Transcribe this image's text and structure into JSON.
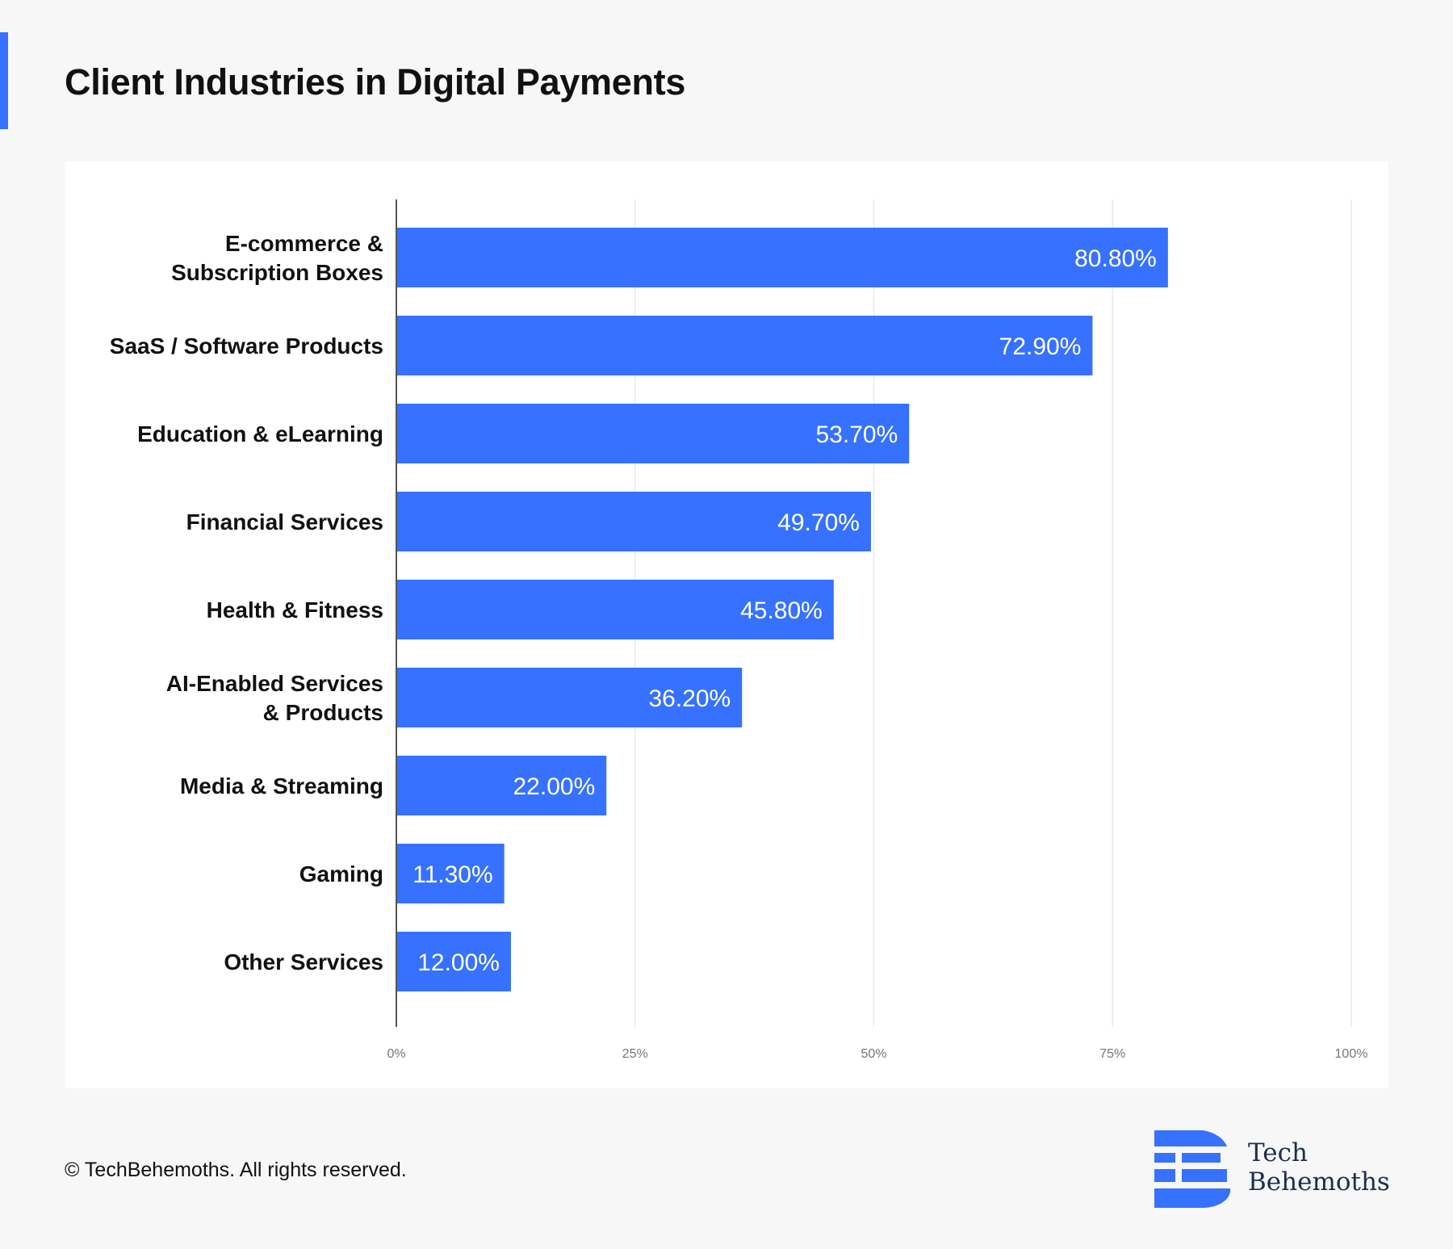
{
  "page": {
    "title": "Client Industries in Digital Payments",
    "copyright": "© TechBehemoths. All rights reserved.",
    "brand": {
      "line1": "Tech",
      "line2": "Behemoths",
      "logo_icon": "techbehemoths-logo-icon"
    },
    "accent_color": "#3671ff"
  },
  "chart_data": {
    "type": "bar",
    "orientation": "horizontal",
    "categories": [
      [
        "E-commerce &",
        "Subscription Boxes"
      ],
      [
        "SaaS / Software Products"
      ],
      [
        "Education & eLearning"
      ],
      [
        "Financial Services"
      ],
      [
        "Health & Fitness"
      ],
      [
        "AI-Enabled Services",
        "& Products"
      ],
      [
        "Media & Streaming"
      ],
      [
        "Gaming"
      ],
      [
        "Other Services"
      ]
    ],
    "values": [
      80.8,
      72.9,
      53.7,
      49.7,
      45.8,
      36.2,
      22.0,
      11.3,
      12.0
    ],
    "value_labels": [
      "80.80%",
      "72.90%",
      "53.70%",
      "49.70%",
      "45.80%",
      "36.20%",
      "22.00%",
      "11.30%",
      "12.00%"
    ],
    "xlim": [
      0,
      100
    ],
    "x_ticks": [
      0,
      25,
      50,
      75,
      100
    ],
    "x_tick_labels": [
      "0%",
      "25%",
      "50%",
      "75%",
      "100%"
    ],
    "grid": "vertical",
    "bar_color": "#3671ff",
    "label_color": "#ffffff"
  }
}
